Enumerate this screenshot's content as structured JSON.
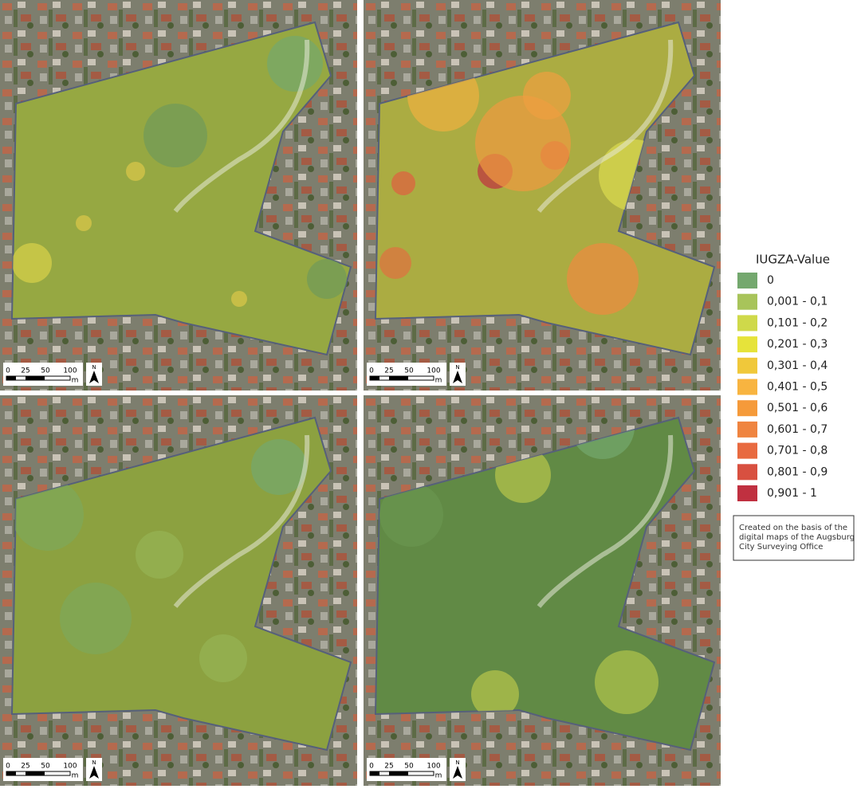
{
  "legend": {
    "title": "IUGZA-Value",
    "items": [
      {
        "label": "0",
        "color": "#74a86e"
      },
      {
        "label": "0,001 - 0,1",
        "color": "#a8c45a"
      },
      {
        "label": "0,101 - 0,2",
        "color": "#cfd94a"
      },
      {
        "label": "0,201 - 0,3",
        "color": "#e6e33a"
      },
      {
        "label": "0,301 - 0,4",
        "color": "#f0c83a"
      },
      {
        "label": "0,401 - 0,5",
        "color": "#f8b440"
      },
      {
        "label": "0,501 - 0,6",
        "color": "#f59a3a"
      },
      {
        "label": "0,601 - 0,7",
        "color": "#ef8440"
      },
      {
        "label": "0,701 - 0,8",
        "color": "#e86a40"
      },
      {
        "label": "0,801 - 0,9",
        "color": "#d85040"
      },
      {
        "label": "0,901 - 1",
        "color": "#c03040"
      }
    ]
  },
  "scale_bar": {
    "ticks": [
      "0",
      "25",
      "50",
      "100"
    ],
    "unit": "m",
    "north": "N"
  },
  "credit": [
    "Created on the basis of the",
    "digital maps of the Augsburg",
    "City Surveying Office"
  ]
}
